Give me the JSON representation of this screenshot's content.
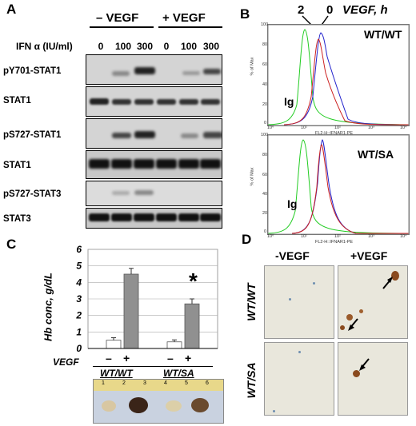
{
  "panelA": {
    "letter": "A",
    "minus_vegf": "– VEGF",
    "plus_vegf": "+ VEGF",
    "ifn_label": "IFN α (IU/ml)",
    "doses": [
      "0",
      "100",
      "300",
      "0",
      "100",
      "300"
    ],
    "blots": [
      "pY701-STAT1",
      "STAT1",
      "pS727-STAT1",
      "STAT1",
      "pS727-STAT3",
      "STAT3"
    ]
  },
  "panelB": {
    "letter": "B",
    "time_labels": [
      "2",
      "0"
    ],
    "vegf_h": "VEGF, h",
    "plots": [
      {
        "genotype": "WT/WT",
        "ig_label": "Ig",
        "ylabel": "% of Max",
        "xlabel": "FL2-H::IFNAR1-PE",
        "yticks": [
          "100",
          "80",
          "60",
          "40",
          "20",
          "0"
        ],
        "xticks": [
          "10⁰",
          "10¹",
          "10²",
          "10³",
          "10⁴"
        ]
      },
      {
        "genotype": "WT/SA",
        "ig_label": "Ig",
        "ylabel": "% of Max",
        "xlabel": "FL2-H::IFNAR1-PE",
        "yticks": [
          "100",
          "80",
          "60",
          "40",
          "20",
          "0"
        ],
        "xticks": [
          "10⁰",
          "10¹",
          "10²",
          "10³",
          "10⁴"
        ]
      }
    ],
    "colors": {
      "ig": "#22cc22",
      "t0": "#2222cc",
      "t2": "#cc2222"
    }
  },
  "panelC": {
    "letter": "C",
    "ylabel": "Hb conc, g/dL",
    "vegf_label": "VEGF",
    "genotypes": [
      "WT/WT",
      "WT/SA"
    ],
    "signs": [
      "–",
      "+",
      "–",
      "+"
    ],
    "asterisk": "*",
    "ruler_marks": [
      "1",
      "2",
      "3",
      "4",
      "5",
      "6"
    ]
  },
  "chart_data": {
    "type": "bar",
    "categories": [
      "WT/WT –",
      "WT/WT +",
      "WT/SA –",
      "WT/SA +"
    ],
    "values": [
      0.5,
      4.5,
      0.4,
      2.7
    ],
    "errors": [
      0.15,
      0.35,
      0.12,
      0.3
    ],
    "ylabel": "Hb conc, g/dL",
    "ylim": [
      0,
      6
    ],
    "yticks": [
      "0",
      "1",
      "2",
      "3",
      "4",
      "5",
      "6"
    ],
    "grid": true,
    "colors": [
      "#ffffff",
      "#909090",
      "#ffffff",
      "#909090"
    ]
  },
  "panelD": {
    "letter": "D",
    "col_minus": "-VEGF",
    "col_plus": "+VEGF",
    "row_wtwt": "WT/WT",
    "row_wtsa": "WT/SA"
  }
}
